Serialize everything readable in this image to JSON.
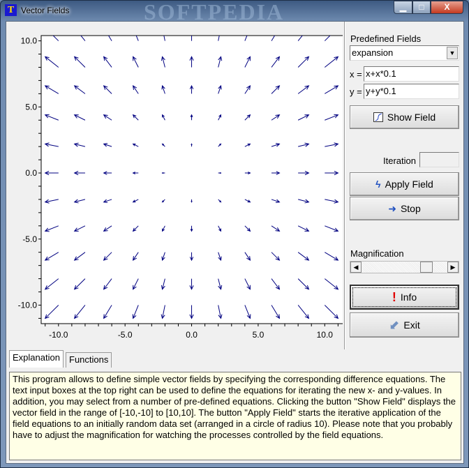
{
  "window": {
    "title": "Vector Fields",
    "watermark": "SOFTPEDIA",
    "controls": {
      "minimize": "▁",
      "maximize": "□",
      "close": "X"
    }
  },
  "chart_data": {
    "type": "quiver",
    "xlim": [
      -11.3,
      11.4
    ],
    "ylim": [
      -11.4,
      10.4
    ],
    "x_ticks": [
      "-10.0",
      "-5.0",
      "0.0",
      "5.0",
      "10.0"
    ],
    "y_ticks": [
      "10.0",
      "5.0",
      "0.0",
      "-5.0",
      "-10.0"
    ],
    "x_tick_values": [
      -10,
      -5,
      0,
      5,
      10
    ],
    "y_tick_values": [
      10,
      5,
      0,
      -5,
      -10
    ],
    "minor_tick_step": 1,
    "grid_x": [
      -10,
      -8,
      -6,
      -4,
      -2,
      0,
      2,
      4,
      6,
      8,
      10
    ],
    "grid_y": [
      10,
      8,
      6,
      4,
      2,
      0,
      -2,
      -4,
      -6,
      -8,
      -10
    ],
    "field": {
      "x": "x+x*0.1",
      "y": "y+y*0.1"
    },
    "grid": false,
    "arrow_color": "#000080"
  },
  "panel": {
    "predefined_label": "Predefined Fields",
    "predefined_value": "expansion",
    "x_label": "x =",
    "x_value": "x+x*0.1",
    "y_label": "y =",
    "y_value": "y+y*0.1",
    "show_field": "Show Field",
    "iteration_label": "Iteration",
    "iteration_value": "",
    "apply_field": "Apply Field",
    "stop": "Stop",
    "magnification_label": "Magnification",
    "magnification_level": 0.8,
    "info": "Info",
    "exit": "Exit"
  },
  "tabs": [
    {
      "label": "Explanation",
      "active": true
    },
    {
      "label": "Functions",
      "active": false
    }
  ],
  "explanation": "This program allows to define simple vector fields by specifying the corresponding difference equations. The text input boxes at the top right can be used to define the equations for iterating the new x- and y-values. In addition, you may select from a number of pre-defined equations. Clicking the button \"Show Field\" displays the vector field in the range of [-10,-10] to [10,10]. The button \"Apply Field\" starts the iterative application of the field equations to an initially random data set (arranged in a circle of radius 10). Please note that you probably have to adjust the magnification for watching the processes controlled by the field equations."
}
